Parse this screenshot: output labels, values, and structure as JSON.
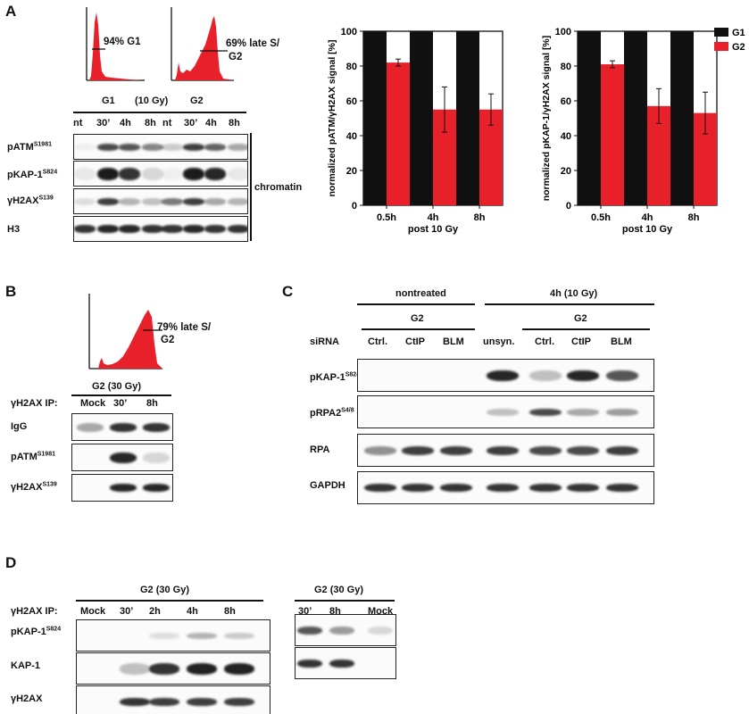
{
  "panels": {
    "A": "A",
    "B": "B",
    "C": "C",
    "D": "D"
  },
  "panel_a": {
    "hist1_label": "94% G1",
    "hist2_label_line1": "69% late S/",
    "hist2_label_line2": "G2",
    "group_g1": "G1",
    "dose": "(10 Gy)",
    "group_g2": "G2",
    "lanes": [
      "nt",
      "30’",
      "4h",
      "8h",
      "nt",
      "30’",
      "4h",
      "8h"
    ],
    "rows": [
      {
        "base": "pATM",
        "sup": "S1981"
      },
      {
        "base": "pKAP-1",
        "sup": "S824"
      },
      {
        "base": "γH2AX",
        "sup": "S139"
      },
      {
        "base": "H3",
        "sup": ""
      }
    ],
    "fraction": "chromatin"
  },
  "panel_b": {
    "hist_label_line1": "79% late S/",
    "hist_label_line2": "G2",
    "condition": "G2 (30 Gy)",
    "ip_label": "γH2AX IP:",
    "lanes": [
      "Mock",
      "30’",
      "8h"
    ],
    "rows": [
      {
        "base": "IgG",
        "sup": ""
      },
      {
        "base": "pATM",
        "sup": "S1981"
      },
      {
        "base": "γH2AX",
        "sup": "S139"
      }
    ]
  },
  "panel_c": {
    "nontreated": "nontreated",
    "treated": "4h (10 Gy)",
    "g2_left": "G2",
    "unsyn": "unsyn.",
    "g2_right": "G2",
    "sirna": "siRNA",
    "lanes": [
      "Ctrl.",
      "CtIP",
      "BLM",
      "",
      "Ctrl.",
      "CtIP",
      "BLM"
    ],
    "rows": [
      {
        "base": "pKAP-1",
        "sup": "S824"
      },
      {
        "base": "pRPA2",
        "sup": "S4/8"
      },
      {
        "base": "RPA",
        "sup": ""
      },
      {
        "base": "GAPDH",
        "sup": ""
      }
    ]
  },
  "panel_d": {
    "condition_left": "G2 (30 Gy)",
    "condition_right": "G2 (30 Gy)",
    "ip_label": "γH2AX IP:",
    "lanes_left": [
      "Mock",
      "30’",
      "2h",
      "4h",
      "8h"
    ],
    "lanes_right": [
      "30’",
      "8h",
      "Mock"
    ],
    "rows": [
      {
        "base": "pKAP-1",
        "sup": "S824"
      },
      {
        "base": "KAP-1",
        "sup": ""
      },
      {
        "base": "γH2AX",
        "sup": ""
      }
    ]
  },
  "chart_data": [
    {
      "type": "bar",
      "categories": [
        "0.5h",
        "4h",
        "8h"
      ],
      "xlabel_line2": "post 10 Gy",
      "ylabel": "normalized pATM/γH2AX signal [%]",
      "ylim": [
        0,
        100
      ],
      "yticks": [
        0,
        20,
        40,
        60,
        80,
        100
      ],
      "series": [
        {
          "name": "G1",
          "color": "#111111",
          "values": [
            100,
            100,
            100
          ],
          "errors": [
            0,
            0,
            0
          ]
        },
        {
          "name": "G2",
          "color": "#e8202a",
          "values": [
            82,
            55,
            55
          ],
          "errors": [
            2,
            13,
            9
          ]
        }
      ]
    },
    {
      "type": "bar",
      "categories": [
        "0.5h",
        "4h",
        "8h"
      ],
      "xlabel_line2": "post 10 Gy",
      "ylabel": "normalized pKAP-1/γH2AX signal [%]",
      "ylim": [
        0,
        100
      ],
      "yticks": [
        0,
        20,
        40,
        60,
        80,
        100
      ],
      "legend": [
        "G1",
        "G2"
      ],
      "series": [
        {
          "name": "G1",
          "color": "#111111",
          "values": [
            100,
            100,
            100
          ],
          "errors": [
            0,
            0,
            0
          ]
        },
        {
          "name": "G2",
          "color": "#e8202a",
          "values": [
            81,
            57,
            53
          ],
          "errors": [
            2,
            10,
            12
          ]
        }
      ]
    }
  ]
}
